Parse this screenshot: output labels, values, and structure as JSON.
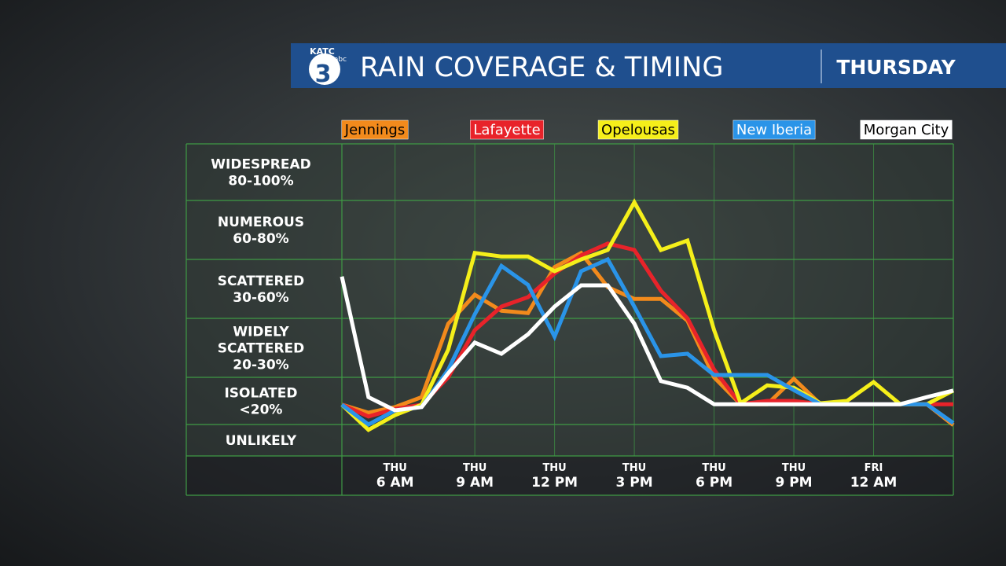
{
  "header": {
    "logo": {
      "brand": "KATC",
      "number": "3",
      "network": "abc"
    },
    "title": "RAIN COVERAGE & TIMING",
    "day": "THURSDAY"
  },
  "chart_data": {
    "type": "line",
    "x": [
      4,
      5,
      6,
      7,
      8,
      9,
      10,
      11,
      12,
      13,
      14,
      15,
      16,
      17,
      18,
      19,
      20,
      21,
      22,
      23,
      24,
      25,
      26,
      27
    ],
    "xlim": [
      4,
      27
    ],
    "xticks": [
      {
        "value": 6,
        "label": "6 AM",
        "day": "THU"
      },
      {
        "value": 9,
        "label": "9 AM",
        "day": "THU"
      },
      {
        "value": 12,
        "label": "12 PM",
        "day": "THU"
      },
      {
        "value": 15,
        "label": "3 PM",
        "day": "THU"
      },
      {
        "value": 18,
        "label": "6 PM",
        "day": "THU"
      },
      {
        "value": 21,
        "label": "9 PM",
        "day": "THU"
      },
      {
        "value": 24,
        "label": "12 AM",
        "day": "FRI"
      }
    ],
    "ylim": [
      0,
      6
    ],
    "yticks": [
      0,
      1,
      2,
      3,
      4,
      5,
      6
    ],
    "y_band_labels": [
      [
        "UNLIKELY"
      ],
      [
        "ISOLATED",
        "<20%"
      ],
      [
        "WIDELY",
        "SCATTERED",
        "20-30%"
      ],
      [
        "SCATTERED",
        "30-60%"
      ],
      [
        "NUMEROUS",
        "60-80%"
      ],
      [
        "WIDESPREAD",
        "80-100%"
      ]
    ],
    "grid": true,
    "series": [
      {
        "name": "Jennings",
        "color": "#f28a1c",
        "values": [
          1.42,
          1.25,
          1.37,
          1.58,
          2.91,
          3.4,
          3.13,
          3.09,
          3.87,
          4.11,
          3.53,
          3.33,
          3.33,
          2.96,
          2.0,
          1.43,
          1.43,
          1.97,
          1.43,
          1.43,
          1.43,
          1.43,
          1.43,
          0.98
        ]
      },
      {
        "name": "Lafayette",
        "color": "#e8232a",
        "values": [
          1.42,
          1.17,
          1.33,
          1.42,
          2.0,
          2.8,
          3.2,
          3.36,
          3.76,
          4.07,
          4.27,
          4.16,
          3.47,
          3.0,
          2.13,
          1.43,
          1.5,
          1.5,
          1.43,
          1.43,
          1.43,
          1.43,
          1.43,
          1.43
        ]
      },
      {
        "name": "Opelousas",
        "color": "#f5ef1a",
        "values": [
          1.42,
          0.83,
          1.2,
          1.42,
          2.47,
          4.11,
          4.05,
          4.05,
          3.8,
          4.0,
          4.16,
          4.97,
          4.16,
          4.32,
          2.8,
          1.45,
          1.83,
          1.78,
          1.45,
          1.5,
          1.9,
          1.43,
          1.43,
          1.72
        ]
      },
      {
        "name": "New Iberia",
        "color": "#2a94e8",
        "values": [
          1.42,
          1.0,
          1.3,
          1.37,
          2.13,
          3.07,
          3.89,
          3.57,
          2.69,
          3.8,
          4.0,
          3.2,
          2.36,
          2.4,
          2.04,
          2.04,
          2.04,
          1.73,
          1.43,
          1.43,
          1.43,
          1.43,
          1.43,
          1.03
        ]
      },
      {
        "name": "Morgan City",
        "color": "#ffffff",
        "values": [
          3.71,
          1.58,
          1.3,
          1.37,
          2.07,
          2.59,
          2.4,
          2.73,
          3.2,
          3.56,
          3.56,
          2.91,
          1.92,
          1.78,
          1.43,
          1.43,
          1.43,
          1.43,
          1.43,
          1.43,
          1.43,
          1.43,
          1.58,
          1.72
        ]
      }
    ]
  }
}
